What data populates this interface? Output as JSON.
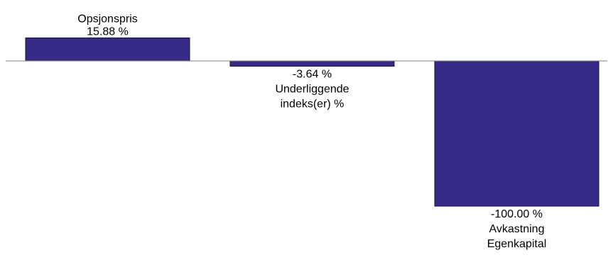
{
  "colors": {
    "bar": "#352b86",
    "bar_stroke": "#1a1547",
    "baseline": "#808080",
    "background": "#ffffff",
    "text": "#000000"
  },
  "chart_data": {
    "type": "bar",
    "categories": [
      [
        "Opsjonspris"
      ],
      [
        "Underliggende",
        "indeks(er) %"
      ],
      [
        "Avkastning",
        "Egenkapital"
      ]
    ],
    "values": [
      15.88,
      -3.64,
      -100.0
    ],
    "value_labels": [
      "15.88 %",
      "-3.64 %",
      "-100.00 %"
    ],
    "ylim": [
      -100,
      15.88
    ],
    "grid": false,
    "legend": "none"
  }
}
